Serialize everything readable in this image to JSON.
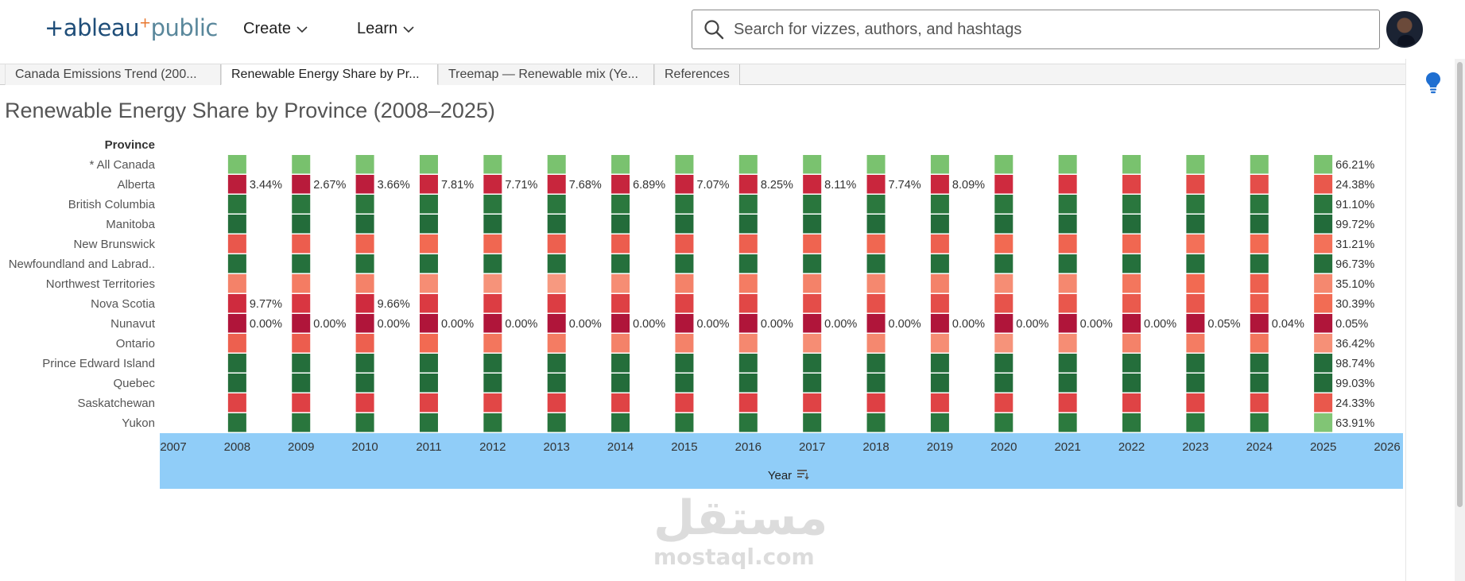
{
  "app": {
    "logo_text": "+ableau",
    "logo_suffix": "public",
    "nav": {
      "create": "Create",
      "learn": "Learn"
    },
    "search_placeholder": "Search for vizzes, authors, and hashtags",
    "icons": {
      "search": "search-icon",
      "avatar": "avatar",
      "bulb": "lightbulb-icon",
      "sort": "sort-icon"
    }
  },
  "tabs": [
    {
      "label": "Canada Emissions Trend (200..."
    },
    {
      "label": "Renewable Energy Share by Pr..."
    },
    {
      "label": "Treemap — Renewable mix (Ye..."
    },
    {
      "label": "References"
    }
  ],
  "viz": {
    "title": "Renewable Energy Share by Province (2008–2025)",
    "row_header": "Province",
    "x_axis_label": "Year",
    "colors": {
      "axis_band": "#90cdf8"
    }
  },
  "chart_data": {
    "type": "heatmap",
    "title": "Renewable Energy Share by Province (2008–2025)",
    "xlabel": "Year",
    "ylabel": "Province",
    "x_ticks": [
      2007,
      2008,
      2009,
      2010,
      2011,
      2012,
      2013,
      2014,
      2015,
      2016,
      2017,
      2018,
      2019,
      2020,
      2021,
      2022,
      2023,
      2024,
      2025,
      2026
    ],
    "years": [
      2008,
      2009,
      2010,
      2011,
      2012,
      2013,
      2014,
      2015,
      2016,
      2017,
      2018,
      2019,
      2020,
      2021,
      2022,
      2023,
      2024,
      2025
    ],
    "color_scale": {
      "low": "#b0153a",
      "mid": "#f5a38a",
      "high": "#226b3a"
    },
    "rows": [
      {
        "province": "* All Canada",
        "values": [
          66.5,
          67.0,
          66.0,
          66.8,
          66.2,
          66.4,
          66.3,
          66.1,
          66.5,
          66.4,
          66.2,
          66.3,
          67.0,
          66.8,
          66.5,
          66.3,
          66.2,
          66.21
        ],
        "labels": [
          "",
          "",
          "",
          "",
          "",
          "",
          "",
          "",
          "",
          "",
          "",
          "",
          "",
          "",
          "",
          "",
          "",
          "66.21%"
        ]
      },
      {
        "province": "Alberta",
        "values": [
          3.44,
          2.67,
          3.66,
          7.81,
          7.71,
          7.68,
          6.89,
          7.07,
          8.25,
          8.11,
          7.74,
          8.09,
          9.5,
          14.0,
          18.0,
          20.0,
          21.0,
          24.38
        ],
        "labels": [
          "3.44%",
          "2.67%",
          "3.66%",
          "7.81%",
          "7.71%",
          "7.68%",
          "6.89%",
          "7.07%",
          "8.25%",
          "8.11%",
          "7.74%",
          "8.09%",
          "",
          "",
          "",
          "",
          "",
          "24.38%"
        ]
      },
      {
        "province": "British Columbia",
        "values": [
          92,
          91,
          90,
          92,
          91,
          91,
          90,
          91,
          91,
          92,
          90,
          91,
          90,
          91,
          91,
          90,
          91,
          91.1
        ],
        "labels": [
          "",
          "",
          "",
          "",
          "",
          "",
          "",
          "",
          "",
          "",
          "",
          "",
          "",
          "",
          "",
          "",
          "",
          "91.10%"
        ]
      },
      {
        "province": "Manitoba",
        "values": [
          99,
          99,
          99,
          99,
          99,
          99,
          99,
          99,
          99,
          99,
          99,
          99,
          99,
          99,
          99,
          99,
          99,
          99.72
        ],
        "labels": [
          "",
          "",
          "",
          "",
          "",
          "",
          "",
          "",
          "",
          "",
          "",
          "",
          "",
          "",
          "",
          "",
          "",
          "99.72%"
        ]
      },
      {
        "province": "New Brunswick",
        "values": [
          24,
          26,
          28,
          30,
          29,
          27,
          26,
          25,
          27,
          28,
          29,
          27,
          30,
          28,
          29,
          31,
          30,
          31.21
        ],
        "labels": [
          "",
          "",
          "",
          "",
          "",
          "",
          "",
          "",
          "",
          "",
          "",
          "",
          "",
          "",
          "",
          "",
          "",
          "31.21%"
        ]
      },
      {
        "province": "Newfoundland and Labrad..",
        "values": [
          96,
          96,
          95,
          96,
          96,
          96,
          96,
          96,
          96,
          96,
          96,
          96,
          96,
          96,
          96,
          96,
          96,
          96.73
        ],
        "labels": [
          "",
          "",
          "",
          "",
          "",
          "",
          "",
          "",
          "",
          "",
          "",
          "",
          "",
          "",
          "",
          "",
          "",
          "96.73%"
        ]
      },
      {
        "province": "Northwest Territories",
        "values": [
          34,
          33,
          34,
          36,
          37,
          38,
          36,
          34,
          33,
          34,
          35,
          34,
          36,
          35,
          32,
          30,
          27,
          35.1
        ],
        "labels": [
          "",
          "",
          "",
          "",
          "",
          "",
          "",
          "",
          "",
          "",
          "",
          "",
          "",
          "",
          "",
          "",
          "",
          "35.10%"
        ]
      },
      {
        "province": "Nova Scotia",
        "values": [
          9.77,
          14,
          9.66,
          15,
          16,
          16,
          17,
          18,
          19,
          21,
          22,
          21,
          23,
          24,
          25,
          24,
          26,
          30.39
        ],
        "labels": [
          "9.77%",
          "",
          "9.66%",
          "",
          "",
          "",
          "",
          "",
          "",
          "",
          "",
          "",
          "",
          "",
          "",
          "",
          "",
          "30.39%"
        ]
      },
      {
        "province": "Nunavut",
        "values": [
          0,
          0,
          0,
          0,
          0,
          0,
          0,
          0,
          0,
          0,
          0,
          0,
          0,
          0,
          0,
          0.05,
          0.04,
          0.05
        ],
        "labels": [
          "0.00%",
          "0.00%",
          "0.00%",
          "0.00%",
          "0.00%",
          "0.00%",
          "0.00%",
          "0.00%",
          "0.00%",
          "0.00%",
          "0.00%",
          "0.00%",
          "0.00%",
          "0.00%",
          "0.00%",
          "0.05%",
          "0.04%",
          "0.05%"
        ]
      },
      {
        "province": "Ontario",
        "values": [
          27,
          26,
          27,
          30,
          32,
          33,
          34,
          34,
          35,
          36,
          35,
          36,
          37,
          36,
          34,
          33,
          32,
          36.42
        ],
        "labels": [
          "",
          "",
          "",
          "",
          "",
          "",
          "",
          "",
          "",
          "",
          "",
          "",
          "",
          "",
          "",
          "",
          "",
          "36.42%"
        ]
      },
      {
        "province": "Prince Edward Island",
        "values": [
          98,
          98,
          98,
          98,
          98,
          98,
          98,
          98,
          98,
          98,
          98,
          98,
          98,
          98,
          98,
          98,
          98,
          98.74
        ],
        "labels": [
          "",
          "",
          "",
          "",
          "",
          "",
          "",
          "",
          "",
          "",
          "",
          "",
          "",
          "",
          "",
          "",
          "",
          "98.74%"
        ]
      },
      {
        "province": "Quebec",
        "values": [
          99,
          99,
          99,
          99,
          99,
          99,
          99,
          99,
          99,
          99,
          99,
          99,
          99,
          99,
          99,
          99,
          99,
          99.03
        ],
        "labels": [
          "",
          "",
          "",
          "",
          "",
          "",
          "",
          "",
          "",
          "",
          "",
          "",
          "",
          "",
          "",
          "",
          "",
          "99.03%"
        ]
      },
      {
        "province": "Saskatchewan",
        "values": [
          18,
          17,
          17,
          18,
          19,
          18,
          18,
          18,
          17,
          18,
          17,
          18,
          19,
          18,
          18,
          19,
          20,
          24.33
        ],
        "labels": [
          "",
          "",
          "",
          "",
          "",
          "",
          "",
          "",
          "",
          "",
          "",
          "",
          "",
          "",
          "",
          "",
          "",
          "24.33%"
        ]
      },
      {
        "province": "Yukon",
        "values": [
          93,
          92,
          92,
          93,
          92,
          93,
          93,
          92,
          92,
          93,
          92,
          91,
          88,
          89,
          90,
          88,
          87,
          63.91
        ],
        "labels": [
          "",
          "",
          "",
          "",
          "",
          "",
          "",
          "",
          "",
          "",
          "",
          "",
          "",
          "",
          "",
          "",
          "",
          "63.91%"
        ]
      }
    ]
  }
}
